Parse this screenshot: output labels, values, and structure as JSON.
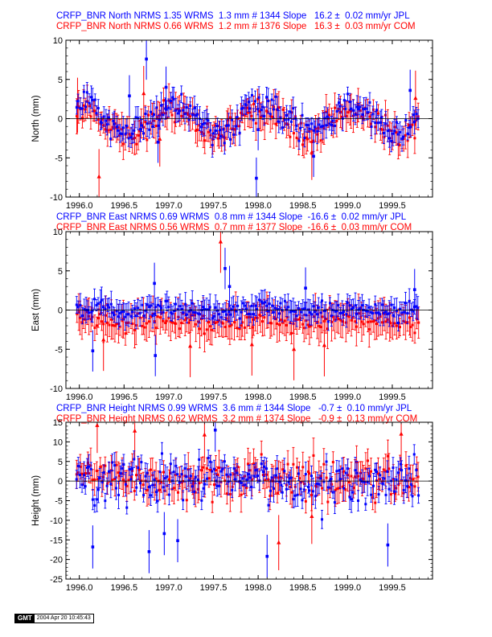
{
  "stamp": {
    "logo": "GMT",
    "date": "2004 Apr 20 10:45:43"
  },
  "colors": {
    "series_jpl": "#0000ff",
    "series_com": "#ff0000",
    "axis": "#000000",
    "background": "#ffffff"
  },
  "chart_data": [
    {
      "type": "scatter",
      "station": "CRFP_BNR",
      "component": "North",
      "ylabel": "North (mm)",
      "xlabel": "",
      "xlim": [
        1995.85,
        1999.95
      ],
      "ylim": [
        -10,
        10
      ],
      "xticks": [
        1996.0,
        1996.5,
        1997.0,
        1997.5,
        1998.0,
        1998.5,
        1999.0,
        1999.5
      ],
      "xtick_labels": [
        "1996.0",
        "1996.5",
        "1997.0",
        "1997.5",
        "1998.0",
        "1998.5",
        "1999.0",
        "1999.5"
      ],
      "yticks": [
        -10,
        -5,
        0,
        5,
        10
      ],
      "ytick_labels": [
        "-10",
        "-5",
        "0",
        "5",
        "10"
      ],
      "grid": false,
      "zero_line": true,
      "header_lines": [
        "CRFP_BNR North NRMS 1.35 WRMS  1.3 mm # 1344 Slope   16.2 ±  0.02 mm/yr JPL",
        "CRFP_BNR North NRMS 0.66 WRMS  1.2 mm # 1376 Slope   16.3 ±  0.03 mm/yr COM"
      ],
      "series": [
        {
          "name": "JPL",
          "color": "#0000ff",
          "nrms": 1.35,
          "wrms_mm": 1.3,
          "n": 1344,
          "slope_mm_yr": 16.2,
          "slope_sigma": 0.02,
          "offset": 0.0,
          "amplitude": 1.7,
          "noise": 1.2,
          "errbar": 1.2,
          "outliers": [
            [
              1996.75,
              7.6
            ],
            [
              1996.97,
              4.0
            ],
            [
              1996.56,
              2.9
            ],
            [
              1997.98,
              -7.6
            ],
            [
              1998.62,
              -4.8
            ],
            [
              1999.7,
              3.6
            ],
            [
              1996.88,
              -3.0
            ],
            [
              1998.0,
              -1.4
            ]
          ]
        },
        {
          "name": "COM",
          "color": "#ff0000",
          "nrms": 0.66,
          "wrms_mm": 1.2,
          "n": 1376,
          "slope_mm_yr": 16.3,
          "slope_sigma": 0.03,
          "offset": -0.4,
          "amplitude": 1.7,
          "noise": 1.1,
          "errbar": 1.6,
          "outliers": [
            [
              1996.22,
              -7.4
            ],
            [
              1996.9,
              -2.6
            ],
            [
              1995.98,
              1.7
            ],
            [
              1999.76,
              2.6
            ],
            [
              1996.72,
              3.2
            ],
            [
              1998.6,
              -4.3
            ]
          ]
        }
      ]
    },
    {
      "type": "scatter",
      "station": "CRFP_BNR",
      "component": "East",
      "ylabel": "East (mm)",
      "xlabel": "",
      "xlim": [
        1995.85,
        1999.95
      ],
      "ylim": [
        -10,
        10
      ],
      "xticks": [
        1996.0,
        1996.5,
        1997.0,
        1997.5,
        1998.0,
        1998.5,
        1999.0,
        1999.5
      ],
      "xtick_labels": [
        "1996.0",
        "1996.5",
        "1997.0",
        "1997.5",
        "1998.0",
        "1998.5",
        "1999.0",
        "1999.5"
      ],
      "yticks": [
        -10,
        -5,
        0,
        5,
        10
      ],
      "ytick_labels": [
        "-10",
        "-5",
        "0",
        "5",
        "10"
      ],
      "grid": false,
      "zero_line": true,
      "header_lines": [
        "CRFP_BNR East NRMS 0.69 WRMS  0.8 mm # 1344 Slope  -16.6 ±  0.02 mm/yr JPL",
        "CRFP_BNR East NRMS 0.56 WRMS  0.7 mm # 1377 Slope  -16.6 ±  0.03 mm/yr COM"
      ],
      "series": [
        {
          "name": "JPL",
          "color": "#0000ff",
          "nrms": 0.69,
          "wrms_mm": 0.8,
          "n": 1344,
          "slope_mm_yr": -16.6,
          "slope_sigma": 0.02,
          "offset": 0.1,
          "amplitude": 0.2,
          "noise": 0.8,
          "errbar": 1.2,
          "outliers": [
            [
              1996.15,
              -5.2
            ],
            [
              1996.85,
              -5.8
            ],
            [
              1997.63,
              5.3
            ],
            [
              1997.68,
              3.0
            ],
            [
              1996.84,
              3.4
            ],
            [
              1998.53,
              2.8
            ],
            [
              1999.75,
              2.6
            ]
          ]
        },
        {
          "name": "COM",
          "color": "#ff0000",
          "nrms": 0.56,
          "wrms_mm": 0.7,
          "n": 1377,
          "slope_mm_yr": -16.6,
          "slope_sigma": 0.03,
          "offset": -1.5,
          "amplitude": 0.3,
          "noise": 0.9,
          "errbar": 1.8,
          "outliers": [
            [
              1997.58,
              8.7
            ],
            [
              1996.27,
              -3.8
            ],
            [
              1997.24,
              -4.6
            ],
            [
              1998.4,
              -5.0
            ],
            [
              1998.74,
              -4.5
            ],
            [
              1997.93,
              -4.4
            ]
          ]
        }
      ]
    },
    {
      "type": "scatter",
      "station": "CRFP_BNR",
      "component": "Height",
      "ylabel": "Height (mm)",
      "xlabel": "",
      "xlim": [
        1995.85,
        1999.95
      ],
      "ylim": [
        -25,
        15
      ],
      "xticks": [
        1996.0,
        1996.5,
        1997.0,
        1997.5,
        1998.0,
        1998.5,
        1999.0,
        1999.5
      ],
      "xtick_labels": [
        "1996.0",
        "1996.5",
        "1997.0",
        "1997.5",
        "1998.0",
        "1998.5",
        "1999.0",
        "1999.5"
      ],
      "yticks": [
        -25,
        -20,
        -15,
        -10,
        -5,
        0,
        5,
        10,
        15
      ],
      "ytick_labels": [
        "-25",
        "-20",
        "-15",
        "-10",
        "-5",
        "0",
        "5",
        "10",
        "15"
      ],
      "grid": false,
      "zero_line": true,
      "header_lines": [
        "CRFP_BNR Height NRMS 0.99 WRMS  3.6 mm # 1344 Slope   -0.7 ±  0.10 mm/yr JPL",
        "CRFP_BNR Height NRMS 0.62 WRMS  3.2 mm # 1374 Slope   -0.9 ±  0.13 mm/yr COM"
      ],
      "series": [
        {
          "name": "JPL",
          "color": "#0000ff",
          "nrms": 0.99,
          "wrms_mm": 3.6,
          "n": 1344,
          "slope_mm_yr": -0.7,
          "slope_sigma": 0.1,
          "offset": 0.0,
          "amplitude": 0.0,
          "noise": 4.2,
          "errbar": 2.5,
          "outliers": [
            [
              1998.1,
              -19.2
            ],
            [
              1997.1,
              -15.2
            ],
            [
              1996.78,
              -18.0
            ],
            [
              1996.15,
              -16.8
            ],
            [
              1999.45,
              -16.3
            ],
            [
              1996.95,
              -13.4
            ],
            [
              1997.52,
              13.0
            ]
          ]
        },
        {
          "name": "COM",
          "color": "#ff0000",
          "nrms": 0.62,
          "wrms_mm": 3.2,
          "n": 1374,
          "slope_mm_yr": -0.9,
          "slope_sigma": 0.13,
          "offset": 0.8,
          "amplitude": 0.0,
          "noise": 3.6,
          "errbar": 3.2,
          "outliers": [
            [
              1998.23,
              -15.7
            ],
            [
              1996.2,
              14.2
            ],
            [
              1996.62,
              12.8
            ],
            [
              1999.6,
              12.0
            ],
            [
              1998.6,
              -9.0
            ],
            [
              1997.4,
              11.8
            ]
          ]
        }
      ]
    }
  ]
}
